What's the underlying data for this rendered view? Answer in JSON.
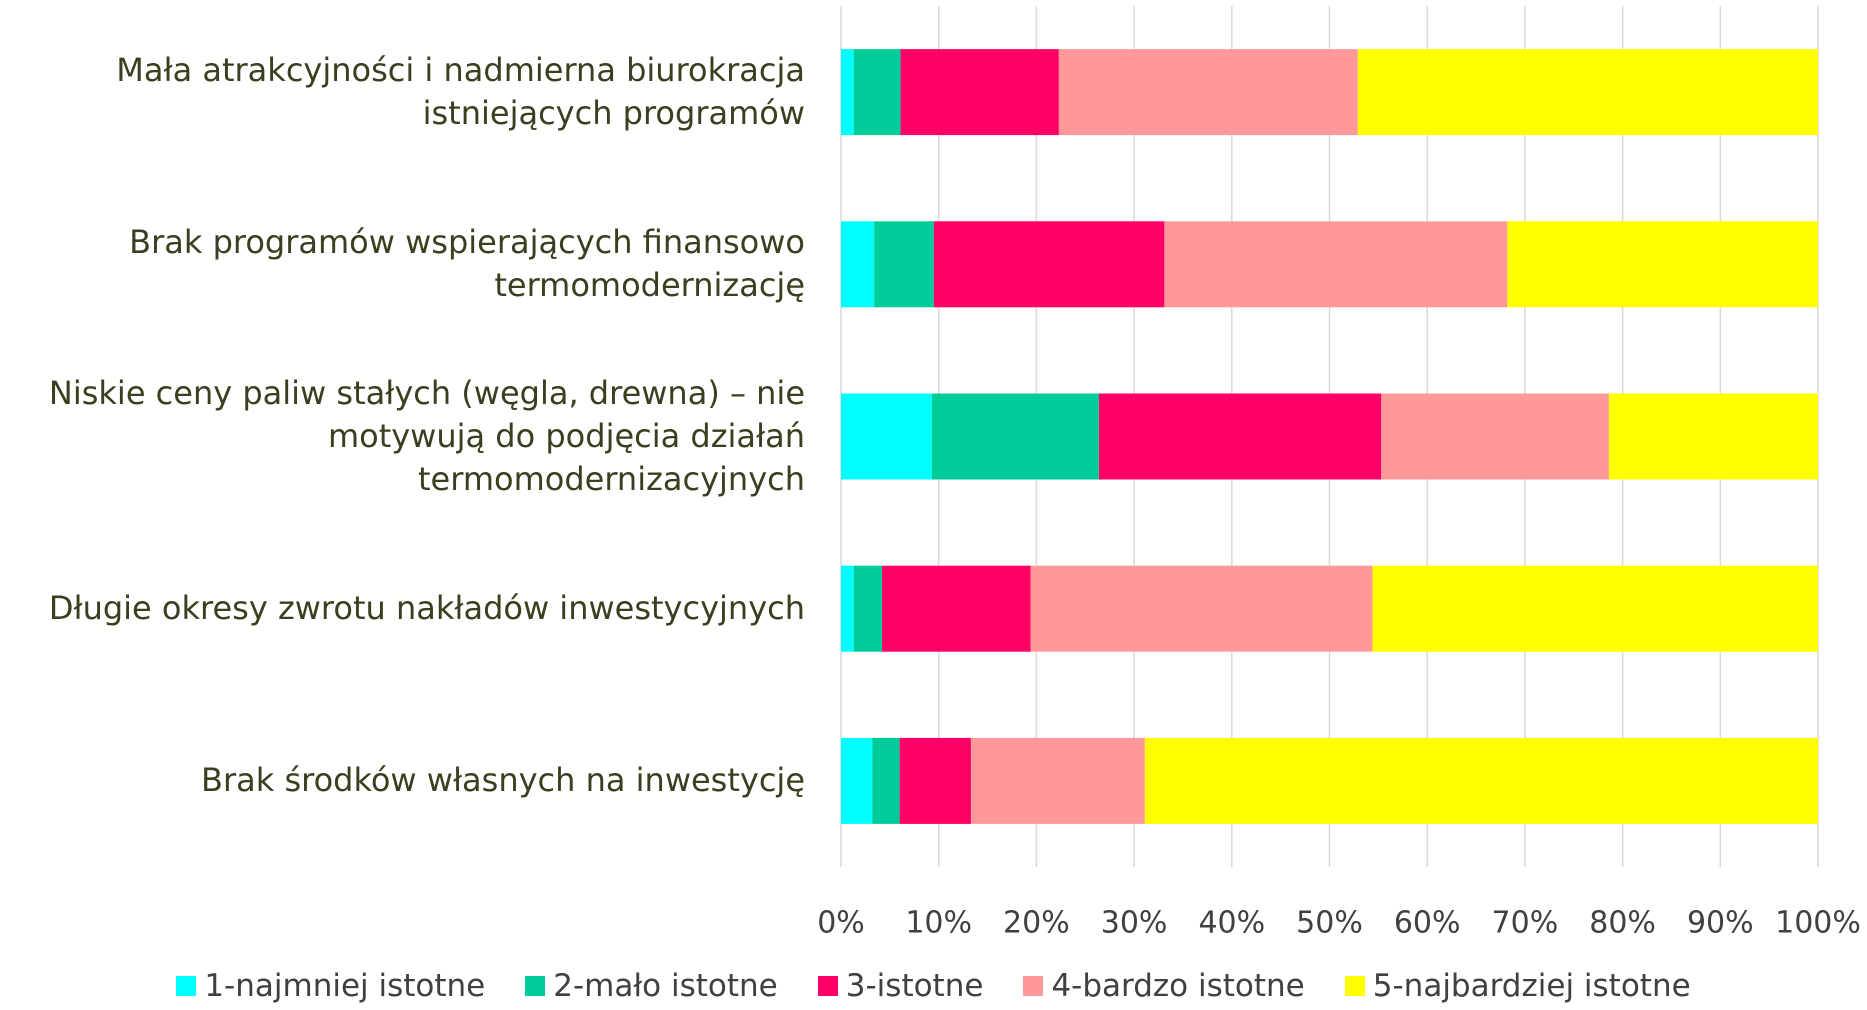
{
  "chart_data": {
    "type": "bar",
    "orientation": "horizontal",
    "stacked": true,
    "categories": [
      "Mała atrakcyjności i nadmierna biurokracja\nistniejących programów",
      "Brak programów wspierających finansowo\ntermomodernizację",
      "Niskie ceny paliw stałych (węgla, drewna) – nie\nmotywują do podjęcia działań\ntermomodernizacyjnych",
      "Długie okresy zwrotu nakładów inwestycyjnych",
      "Brak środków własnych na inwestycję"
    ],
    "series": [
      {
        "name": "1-najmniej istotne",
        "color": "#00ffff",
        "values": [
          1.3,
          3.4,
          9.3,
          1.3,
          3.2
        ]
      },
      {
        "name": "2-mało istotne",
        "color": "#00cc99",
        "values": [
          4.8,
          6.1,
          17.1,
          2.9,
          2.8
        ]
      },
      {
        "name": "3-istotne",
        "color": "#ff0066",
        "values": [
          16.2,
          23.6,
          28.9,
          15.2,
          7.3
        ]
      },
      {
        "name": "4-bardzo istotne",
        "color": "#ff9999",
        "values": [
          30.6,
          35.1,
          23.3,
          35.0,
          17.8
        ]
      },
      {
        "name": "5-najbardziej istotne",
        "color": "#ffff00",
        "values": [
          47.1,
          31.8,
          21.4,
          45.6,
          68.9
        ]
      }
    ],
    "xlim": [
      0,
      100
    ],
    "xticks": [
      {
        "value": 0,
        "label": "0%"
      },
      {
        "value": 10,
        "label": "10%"
      },
      {
        "value": 20,
        "label": "20%"
      },
      {
        "value": 30,
        "label": "30%"
      },
      {
        "value": 40,
        "label": "40%"
      },
      {
        "value": 50,
        "label": "50%"
      },
      {
        "value": 60,
        "label": "60%"
      },
      {
        "value": 70,
        "label": "70%"
      },
      {
        "value": 80,
        "label": "80%"
      },
      {
        "value": 90,
        "label": "90%"
      },
      {
        "value": 100,
        "label": "100%"
      }
    ],
    "grid": true,
    "legend": "bottom"
  }
}
